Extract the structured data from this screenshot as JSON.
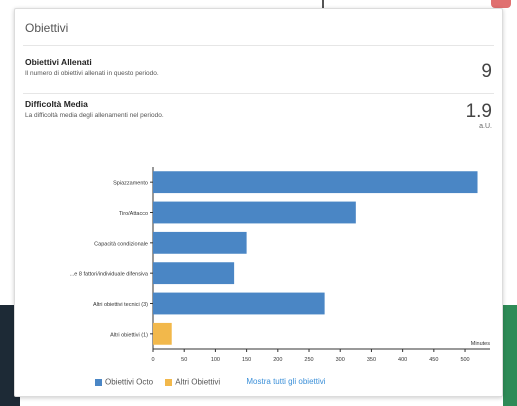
{
  "card": {
    "title": "Obiettivi"
  },
  "stats": [
    {
      "label": "Obiettivi Allenati",
      "description": "Il numero di obiettivi allenati in questo periodo.",
      "value": "9",
      "unit": ""
    },
    {
      "label": "Difficoltà Media",
      "description": "La difficoltà media degli allenamenti nel periodo.",
      "value": "1.9",
      "unit": "a.U."
    }
  ],
  "colors": {
    "primary": "#4a86c5",
    "secondary": "#f2b84b",
    "link": "#3a8fd8"
  },
  "chart_data": {
    "type": "bar",
    "orientation": "horizontal",
    "categories": [
      "Spiazzamento",
      "Tiro/Attacco",
      "Capacità condizionale",
      "...e 8 fattori/individuale difensiva",
      "Altri obiettivi tecnici (3)",
      "Altri obiettivi (1)"
    ],
    "series": [
      {
        "name": "Obiettivi Octo",
        "values": [
          520,
          325,
          150,
          130,
          275,
          0
        ]
      },
      {
        "name": "Altri Obiettivi",
        "values": [
          0,
          0,
          0,
          0,
          0,
          30
        ]
      }
    ],
    "xlim": [
      0,
      540
    ],
    "xticks": [
      "0",
      "50",
      "100",
      "150",
      "200",
      "250",
      "300",
      "350",
      "400",
      "450",
      "500"
    ],
    "xlabel": "Minutes",
    "grid": false,
    "legend_position": "bottom"
  },
  "legend": {
    "items": [
      "Obiettivi Octo",
      "Altri Obiettivi"
    ],
    "link": "Mostra tutti gli obiettivi"
  }
}
